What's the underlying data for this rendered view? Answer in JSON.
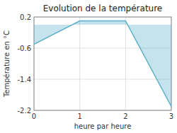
{
  "chart_data": {
    "type": "area",
    "title": "Evolution de la température",
    "xlabel": "heure par heure",
    "ylabel": "Température en °C",
    "x": [
      0,
      1,
      2,
      3
    ],
    "values": [
      -0.5,
      0.1,
      0.1,
      -2.1
    ],
    "color": "#5ab0c8",
    "xlim": [
      0,
      3
    ],
    "ylim": [
      -2.2,
      0.2
    ],
    "xticks": [
      0,
      1,
      2,
      3
    ],
    "yticks": [
      0.2,
      -0.6,
      -1.4,
      -2.2
    ],
    "grid": true
  }
}
